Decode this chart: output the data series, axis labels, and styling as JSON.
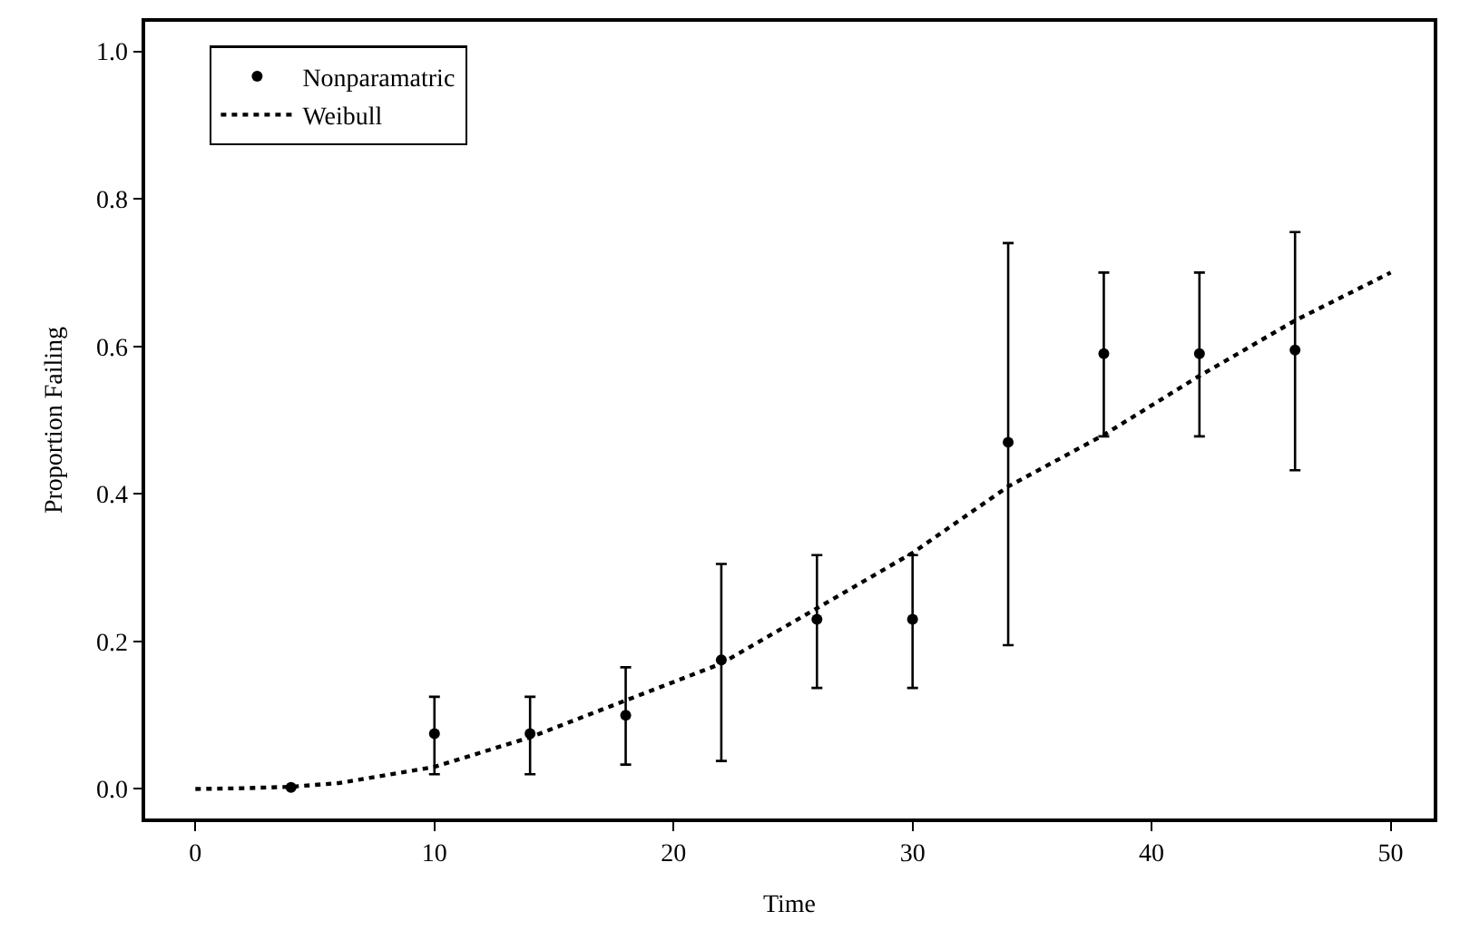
{
  "chart_data": {
    "type": "scatter",
    "xlabel": "Time",
    "ylabel": "Proportion Failing",
    "xlim": [
      -2.1,
      51.8
    ],
    "xticks": [
      0,
      10,
      20,
      30,
      40,
      50
    ],
    "ylim": [
      -0.04,
      1.04
    ],
    "yticks": [
      {
        "value": 0,
        "label": "0.0"
      },
      {
        "value": 0.2,
        "label": "0.2"
      },
      {
        "value": 0.4,
        "label": "0.4"
      },
      {
        "value": 0.6,
        "label": "0.6"
      },
      {
        "value": 0.8,
        "label": "0.8"
      },
      {
        "value": 1,
        "label": "1.0"
      }
    ],
    "legend": "top left",
    "series": [
      {
        "name": "Nonparamatric",
        "marker": "circle",
        "color": "#000000",
        "x": [
          4,
          10,
          14,
          18,
          22,
          26,
          30,
          34,
          38,
          42,
          46
        ],
        "values": [
          0.002,
          0.075,
          0.075,
          0.1,
          0.175,
          0.23,
          0.23,
          0.47,
          0.59,
          0.59,
          0.595
        ],
        "errors": [
          null,
          [
            0.02,
            0.125
          ],
          [
            0.02,
            0.125
          ],
          [
            0.033,
            0.165
          ],
          [
            0.038,
            0.305
          ],
          [
            0.137,
            0.317
          ],
          [
            0.137,
            0.317
          ],
          [
            0.195,
            0.74
          ],
          [
            0.478,
            0.7
          ],
          [
            0.478,
            0.7
          ],
          [
            0.432,
            0.755
          ]
        ]
      },
      {
        "name": "Weibull",
        "type": "line",
        "marker": "none",
        "line_style": "dotted",
        "color": "#000000",
        "x": [
          0,
          2,
          4,
          6,
          10,
          14,
          18,
          22,
          26,
          30,
          34,
          38,
          42,
          46,
          50
        ],
        "values": [
          0,
          0.001,
          0.003,
          0.008,
          0.03,
          0.07,
          0.12,
          0.17,
          0.245,
          0.32,
          0.41,
          0.48,
          0.56,
          0.635,
          0.7
        ]
      }
    ]
  }
}
